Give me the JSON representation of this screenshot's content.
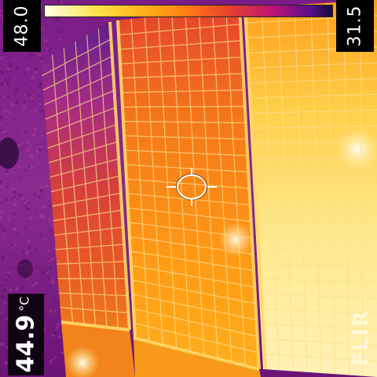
{
  "camera": {
    "scale_max": "48.0",
    "scale_min": "31.5",
    "spot_value": "44.9",
    "spot_unit": "°C",
    "brand": "FLIR"
  },
  "palette": {
    "hot": "#ffffe6",
    "warm": "#ffb21a",
    "mid": "#e8402c",
    "cool": "#b8127a",
    "cold": "#140a3a"
  },
  "icons": {
    "crosshair": "spot-meter-crosshair-icon"
  }
}
